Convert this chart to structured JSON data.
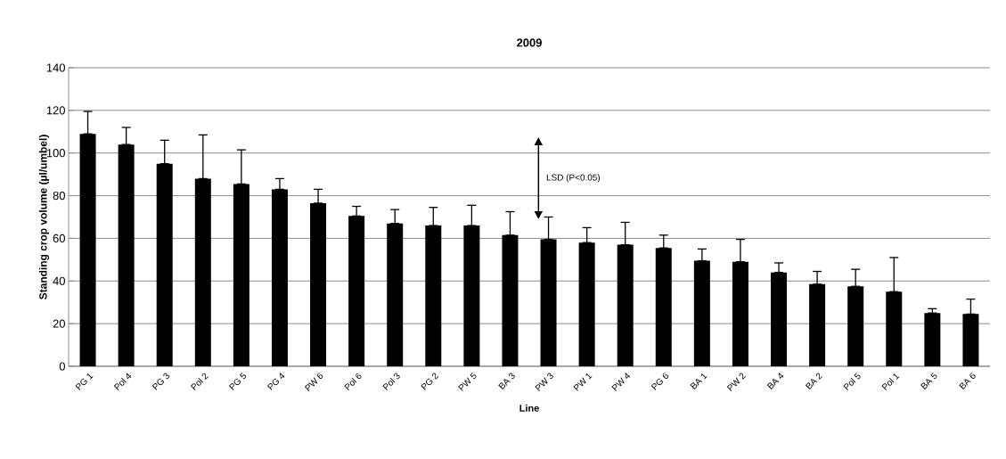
{
  "chart_data": {
    "type": "bar",
    "title": "2009",
    "xlabel": "Line",
    "ylabel": "Standing crop volume (µl/umbel)",
    "categories": [
      "PG 1",
      "Pol 4",
      "PG 3",
      "Pol 2",
      "PG 5",
      "PG 4",
      "PW 6",
      "Pol 6",
      "Pol 3",
      "PG 2",
      "PW 5",
      "BA 3",
      "PW 3",
      "PW 1",
      "PW 4",
      "PG 6",
      "BA 1",
      "PW 2",
      "BA 4",
      "BA 2",
      "Pol 5",
      "Pol 1",
      "BA 5",
      "BA 6"
    ],
    "values": [
      109,
      104,
      95,
      88,
      85.5,
      83,
      76.5,
      70.5,
      67,
      66,
      66,
      61.5,
      59.5,
      58,
      57,
      55.5,
      49.5,
      49,
      44,
      38.5,
      37.5,
      35,
      25,
      24.5
    ],
    "errors": [
      [
        109,
        119.5
      ],
      [
        104,
        112
      ],
      [
        95,
        106
      ],
      [
        88,
        108.5
      ],
      [
        85.5,
        101.5
      ],
      [
        83,
        88
      ],
      [
        76.5,
        83
      ],
      [
        70.5,
        75
      ],
      [
        67,
        73.5
      ],
      [
        66,
        74.5
      ],
      [
        66,
        75.5
      ],
      [
        61.5,
        72.5
      ],
      [
        59.5,
        70
      ],
      [
        58,
        65
      ],
      [
        57,
        67.5
      ],
      [
        55.5,
        61.5
      ],
      [
        49.5,
        55
      ],
      [
        49,
        59.5
      ],
      [
        44,
        48.5
      ],
      [
        38.5,
        44.5
      ],
      [
        37.5,
        45.5
      ],
      [
        35,
        51
      ],
      [
        25,
        27
      ],
      [
        24.5,
        31.5
      ]
    ],
    "color": "#000000",
    "ylim": [
      0,
      140
    ],
    "yticks": [
      0,
      20,
      40,
      60,
      80,
      100,
      120,
      140
    ],
    "grid": "y",
    "annotations": [
      "LSD (P<0.05)"
    ]
  }
}
